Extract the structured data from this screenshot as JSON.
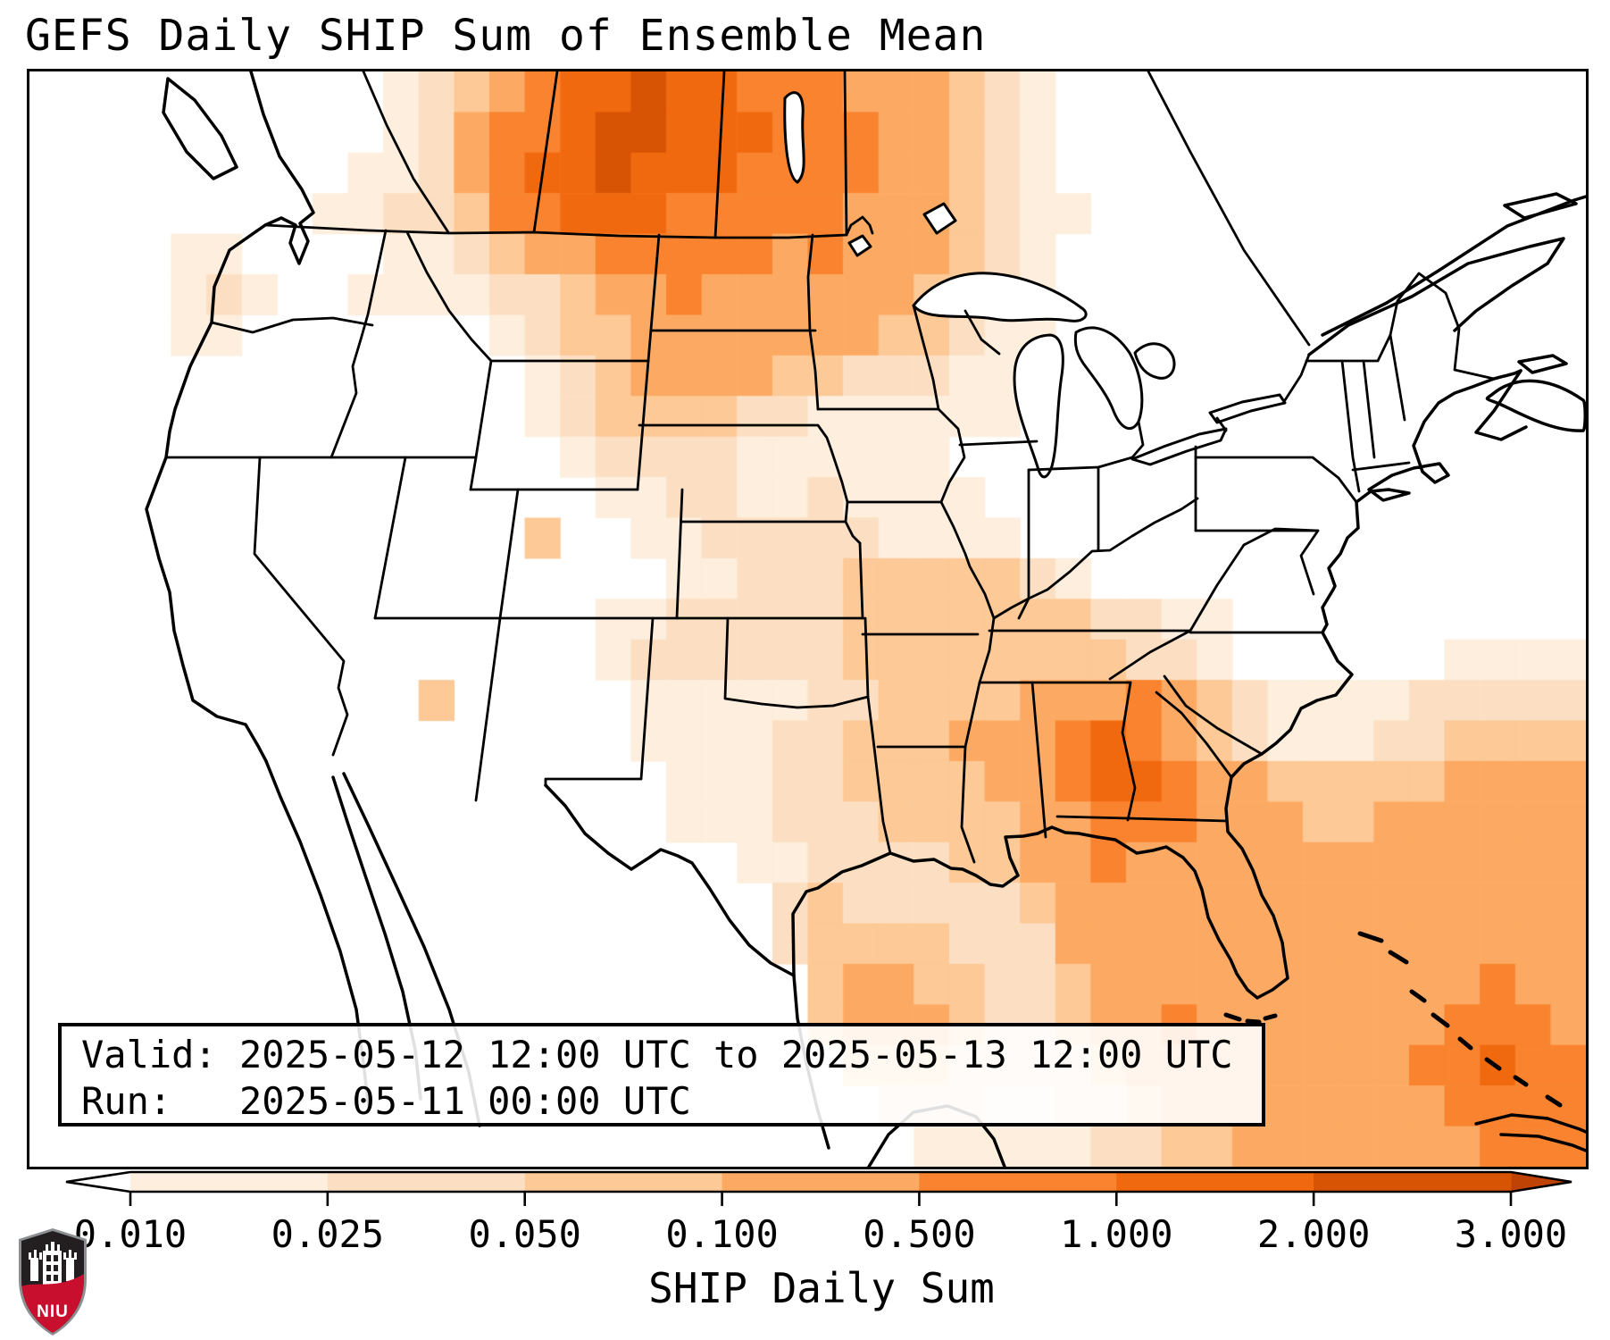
{
  "title": "GEFS Daily SHIP Sum of Ensemble Mean",
  "info_box": {
    "valid_line": "Valid: 2025-05-12 12:00 UTC to 2025-05-13 12:00 UTC",
    "run_line": "Run:   2025-05-11 00:00 UTC"
  },
  "colorbar": {
    "label": "SHIP Daily Sum",
    "tick_labels": [
      "0.010",
      "0.025",
      "0.050",
      "0.100",
      "0.500",
      "1.000",
      "2.000",
      "3.000"
    ],
    "segment_colors": [
      "#fdeedd",
      "#fcdfc2",
      "#fcc997",
      "#fcaa63",
      "#f9832e",
      "#f1690f",
      "#d85405"
    ],
    "under_color": "#ffffff",
    "over_color": "#bf4304",
    "outline_color": "#000000"
  },
  "logo": {
    "text": "NIU",
    "shield_color": "#231f20",
    "band_color": "#c8102e",
    "castle_color": "#ffffff",
    "text_color": "#ffffff",
    "border_color": "#b9bcbe"
  },
  "chart_data": {
    "type": "heatmap",
    "title": "GEFS Daily SHIP Sum of Ensemble Mean",
    "colorbar_label": "SHIP Daily Sum",
    "valid_period": "2025-05-12 12:00 UTC to 2025-05-13 12:00 UTC",
    "run_time": "2025-05-11 00:00 UTC",
    "levels": [
      0.01,
      0.025,
      0.05,
      0.1,
      0.5,
      1.0,
      2.0,
      3.0
    ],
    "level_colors": [
      "#fdeedd",
      "#fcdfc2",
      "#fcc997",
      "#fcaa63",
      "#f9832e",
      "#f1690f",
      "#d85405"
    ],
    "legend_position": "bottom",
    "region": "CONUS and surroundings, Lambert-conformal style basemap",
    "maxima": [
      {
        "area": "Saskatchewan/Manitoba (Canada, north of Montana/North Dakota)",
        "approx_value": "1.0-2.0"
      },
      {
        "area": "Central Georgia / South Carolina",
        "approx_value": "1.0-2.0"
      },
      {
        "area": "Gulf of Mexico south of Louisiana",
        "approx_value": "0.1-0.5"
      },
      {
        "area": "Atlantic off the Southeast coast, Florida, Bahamas, Cuba",
        "approx_value": "0.1-1.0"
      }
    ],
    "grid": {
      "cols": 44,
      "rows": 27,
      "encoding": "one char per cell; 0 = below 0.010 (white), 1-7 = ascending filled contour bins of level_colors",
      "cell_levels": [
        "00000000001234566766555444321000000000000000",
        "00000000001245567766655544321000000000000000",
        "00000000011245667666555544321000000000000000",
        "00000000112235566655555444321100000000000000",
        "00001100001123445555545444321000000000000000",
        "00001210011112234454444443321000000000000000",
        "00001100000001233444444433211000000000000000",
        "00000000000000123444433222110000000000000000",
        "00000000000000123333221111110000000000000000",
        "00000000000000012222111111000000000000000000",
        "00000000000000001122112111100000000000000000",
        "00000000000000300112222211110000000000000000",
        "00000000000000000011222333332100000000000000",
        "00000000000000001122222333333322110000000000",
        "00000000000000001222222333333332210000001111",
        "00000000000300000111112233334445432111122222",
        "00000000000000000111122333444565432111223333",
        "00000000000000000011122333344566544333334444",
        "00000000000000000011122233334455544433444444",
        "00000000000000000000112222334454444444444444",
        "00000000000000000000023222223444444444444444",
        "00000000000000000000023333222444444444444444",
        "00000000000000000000003443322344444444444544",
        "00000000000000000000003444322344544444445554",
        "00000000000000000000000333222234444444455655",
        "00000000000000000000000022211223444444445555",
        "00000000000000000000000001111122334444444555"
      ]
    }
  }
}
